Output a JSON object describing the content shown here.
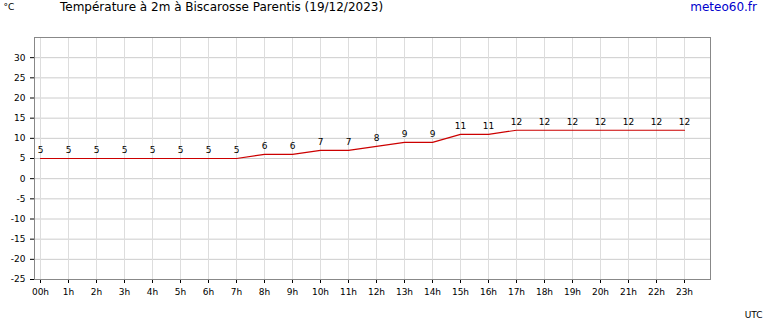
{
  "chart_data": {
    "type": "line",
    "title": "Température à 2m à Biscarosse Parentis (19/12/2023)",
    "annotations": [
      "meteo60.fr"
    ],
    "x_label": "UTC",
    "y_label": "°C",
    "categories": [
      "00h",
      "1h",
      "2h",
      "3h",
      "4h",
      "5h",
      "6h",
      "7h",
      "8h",
      "9h",
      "10h",
      "11h",
      "12h",
      "13h",
      "14h",
      "15h",
      "16h",
      "17h",
      "18h",
      "19h",
      "20h",
      "21h",
      "22h",
      "23h"
    ],
    "values": [
      5,
      5,
      5,
      5,
      5,
      5,
      5,
      5,
      6,
      6,
      7,
      7,
      8,
      9,
      9,
      11,
      11,
      12,
      12,
      12,
      12,
      12,
      12,
      12
    ],
    "color": "#cc0000",
    "ylim": [
      -25,
      35
    ],
    "yticks": [
      -25,
      -20,
      -15,
      -10,
      -5,
      0,
      5,
      10,
      15,
      20,
      25,
      30
    ],
    "grid": true,
    "data_labels": true
  }
}
